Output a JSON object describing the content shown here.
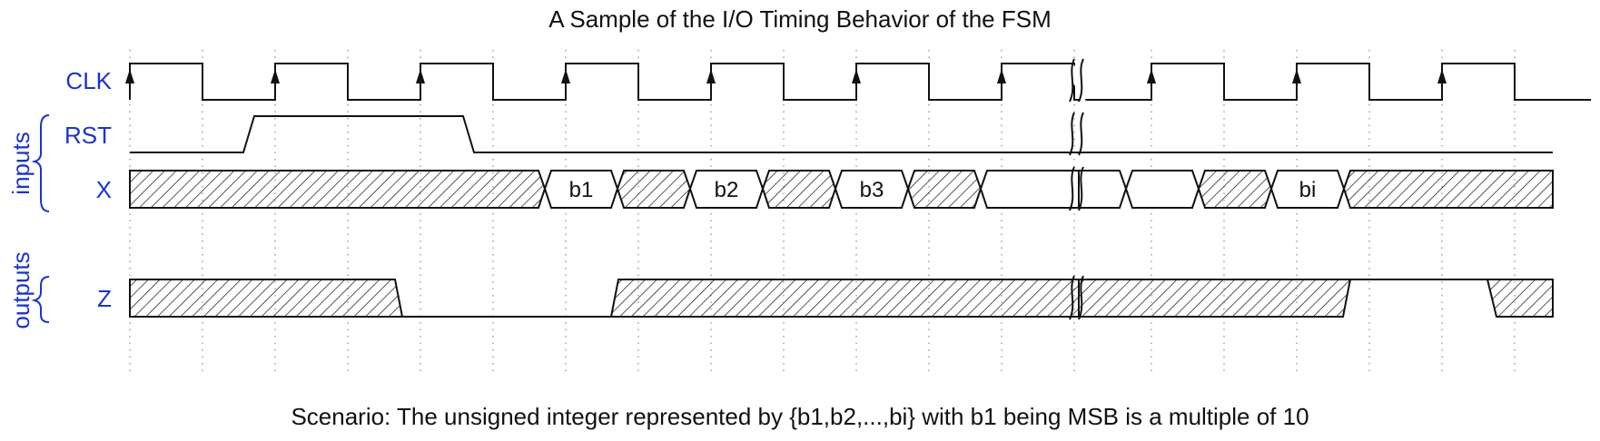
{
  "title": "A Sample of the I/O Timing Behavior of the FSM",
  "caption": "Scenario: The unsigned integer represented by {b1,b2,...,bi} with b1 being MSB is a multiple of 10",
  "signals": {
    "clk": "CLK",
    "rst": "RST",
    "x": "X",
    "z": "Z"
  },
  "groups": {
    "inputs": "inputs",
    "outputs": "outputs"
  },
  "bits": {
    "b1": "b1",
    "b2": "b2",
    "b3": "b3",
    "bi": "bi"
  },
  "colors": {
    "label": "#1a34c9",
    "wave": "#111111",
    "grid": "#9a9a9a"
  }
}
